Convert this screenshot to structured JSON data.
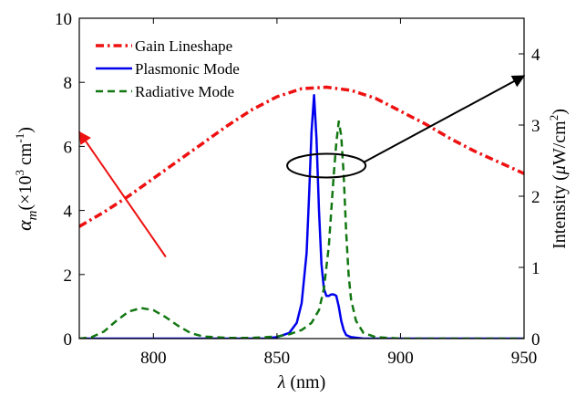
{
  "chart_data": {
    "type": "line",
    "x_axis": {
      "label_symbol": "λ",
      "label_unit": "(nm)",
      "ticks": [
        "800",
        "850",
        "900",
        "950"
      ],
      "tick_values": [
        800,
        850,
        900,
        950
      ],
      "xlim": [
        770,
        950
      ]
    },
    "y_left": {
      "label_symbol": "α",
      "label_subscript": "m",
      "label_prefix": "(×10",
      "label_exp": "3",
      "label_unit": " cm",
      "label_unit_exp": "-1",
      "label_suffix": ")",
      "ticks": [
        "0",
        "2",
        "4",
        "6",
        "8",
        "10"
      ],
      "tick_values": [
        0,
        2,
        4,
        6,
        8,
        10
      ],
      "ylim": [
        0,
        10
      ]
    },
    "y_right": {
      "label_text": "Intensity (",
      "label_mu": "μ",
      "label_unit": "W/cm",
      "label_exp": "2",
      "label_suffix": ")",
      "ticks": [
        "0",
        "1",
        "2",
        "3",
        "4"
      ],
      "tick_values": [
        0,
        1,
        2,
        3,
        4
      ],
      "ylim": [
        0,
        4.5
      ]
    },
    "legend_position": "top-left",
    "grid": false,
    "series": [
      {
        "name": "Gain Lineshape",
        "axis": "left",
        "color": "#ee1111",
        "style": "dash-dot",
        "x": [
          770,
          780,
          790,
          800,
          810,
          820,
          830,
          840,
          850,
          860,
          870,
          880,
          890,
          900,
          910,
          920,
          930,
          940,
          950
        ],
        "y": [
          3.5,
          3.95,
          4.45,
          5.0,
          5.55,
          6.1,
          6.65,
          7.15,
          7.55,
          7.8,
          7.85,
          7.75,
          7.5,
          7.1,
          6.7,
          6.25,
          5.85,
          5.5,
          5.15
        ]
      },
      {
        "name": "Plasmonic Mode",
        "axis": "right",
        "color": "#0000ee",
        "style": "solid",
        "x": [
          770,
          830,
          845,
          850,
          855,
          858,
          860,
          862,
          863,
          864,
          865,
          866,
          867,
          868,
          869,
          870,
          871,
          872,
          873,
          874,
          875,
          876,
          877,
          878,
          880,
          885,
          895,
          950
        ],
        "y": [
          0,
          0,
          0.0,
          0.02,
          0.08,
          0.22,
          0.5,
          1.2,
          2.0,
          2.9,
          3.42,
          2.8,
          1.8,
          1.05,
          0.7,
          0.6,
          0.6,
          0.62,
          0.62,
          0.6,
          0.45,
          0.25,
          0.12,
          0.05,
          0.02,
          0,
          0,
          0
        ]
      },
      {
        "name": "Radiative Mode",
        "axis": "right",
        "color": "#117711",
        "style": "dashed",
        "x": [
          770,
          775,
          780,
          785,
          790,
          795,
          800,
          805,
          810,
          815,
          820,
          830,
          840,
          850,
          855,
          860,
          864,
          867,
          869,
          871,
          873,
          874,
          875,
          876,
          877,
          878,
          879,
          880,
          882,
          885,
          890,
          900,
          950
        ],
        "y": [
          0,
          0.02,
          0.1,
          0.25,
          0.38,
          0.43,
          0.4,
          0.3,
          0.18,
          0.08,
          0.03,
          0.01,
          0.01,
          0.03,
          0.06,
          0.12,
          0.22,
          0.4,
          0.7,
          1.3,
          2.3,
          2.75,
          3.05,
          2.85,
          2.3,
          1.5,
          0.9,
          0.55,
          0.25,
          0.08,
          0.02,
          0,
          0
        ]
      }
    ],
    "annotations": [
      {
        "type": "arrow",
        "from": [
          805,
          2.55
        ],
        "to": [
          770,
          6.45
        ],
        "axis": "left",
        "color": "#ee1111"
      },
      {
        "type": "ellipse",
        "center": [
          870,
          5.4
        ],
        "axis": "left",
        "color": "#000000"
      },
      {
        "type": "arrow",
        "from": [
          885,
          5.5
        ],
        "to": [
          950,
          8.2
        ],
        "axis": "left",
        "color": "#000000"
      }
    ]
  }
}
